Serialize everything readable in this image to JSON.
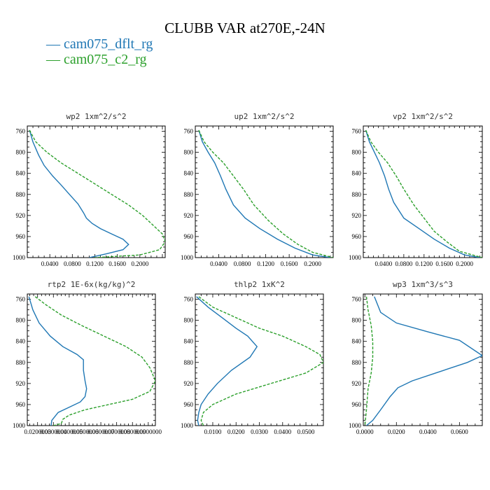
{
  "title": "CLUBB VAR at270E,-24N",
  "legend": [
    {
      "label": "cam075_dflt_rg",
      "color": "#1f77b4"
    },
    {
      "label": "cam075_c2_rg",
      "color": "#2ca02c"
    }
  ],
  "chart_data": [
    {
      "type": "line",
      "title": "wp2  1xm^2/s^2",
      "ylim": [
        1000,
        750
      ],
      "yticks": [
        "760",
        "800",
        "840",
        "880",
        "920",
        "960",
        "1000"
      ],
      "xlim": [
        0.0,
        0.245
      ],
      "xticks": [
        {
          "value": 0.04,
          "label": "0.0400"
        },
        {
          "value": 0.08,
          "label": "0.0800"
        },
        {
          "value": 0.12,
          "label": "0.1200"
        },
        {
          "value": 0.16,
          "label": "0.1600"
        },
        {
          "value": 0.2,
          "label": "0.2000"
        }
      ],
      "series": [
        {
          "name": "cam075_dflt_rg",
          "color": "#1f77b4",
          "dash": "",
          "x": [
            0.004,
            0.01,
            0.02,
            0.03,
            0.045,
            0.06,
            0.075,
            0.09,
            0.1,
            0.105,
            0.115,
            0.13,
            0.15,
            0.17,
            0.18,
            0.17,
            0.14,
            0.11
          ],
          "y": [
            758,
            780,
            805,
            825,
            845,
            862,
            880,
            898,
            915,
            925,
            935,
            945,
            955,
            965,
            975,
            985,
            993,
            1000
          ]
        },
        {
          "name": "cam075_c2_rg",
          "color": "#2ca02c",
          "dash": "4,2",
          "x": [
            0.004,
            0.015,
            0.035,
            0.06,
            0.09,
            0.12,
            0.15,
            0.18,
            0.205,
            0.225,
            0.24,
            0.245,
            0.235,
            0.2,
            0.12
          ],
          "y": [
            758,
            780,
            800,
            820,
            840,
            860,
            880,
            900,
            920,
            940,
            955,
            970,
            985,
            995,
            1000
          ]
        }
      ]
    },
    {
      "type": "line",
      "title": "up2  1xm^2/s^2",
      "ylim": [
        1000,
        750
      ],
      "yticks": [
        "760",
        "800",
        "840",
        "880",
        "920",
        "960",
        "1000"
      ],
      "xlim": [
        0.0,
        0.235
      ],
      "xticks": [
        {
          "value": 0.04,
          "label": "0.0400"
        },
        {
          "value": 0.08,
          "label": "0.0800"
        },
        {
          "value": 0.12,
          "label": "0.1200"
        },
        {
          "value": 0.16,
          "label": "0.1600"
        },
        {
          "value": 0.2,
          "label": "0.2000"
        }
      ],
      "series": [
        {
          "name": "cam075_dflt_rg",
          "color": "#1f77b4",
          "dash": "",
          "x": [
            0.006,
            0.012,
            0.022,
            0.033,
            0.043,
            0.052,
            0.065,
            0.085,
            0.11,
            0.14,
            0.17,
            0.2,
            0.23
          ],
          "y": [
            758,
            780,
            800,
            820,
            845,
            870,
            900,
            925,
            945,
            965,
            982,
            995,
            1000
          ]
        },
        {
          "name": "cam075_c2_rg",
          "color": "#2ca02c",
          "dash": "4,2",
          "x": [
            0.006,
            0.015,
            0.03,
            0.048,
            0.065,
            0.082,
            0.1,
            0.125,
            0.15,
            0.175,
            0.2,
            0.235
          ],
          "y": [
            758,
            780,
            800,
            820,
            845,
            870,
            900,
            930,
            955,
            975,
            990,
            1000
          ]
        }
      ]
    },
    {
      "type": "line",
      "title": "vp2  1xm^2/s^2",
      "ylim": [
        1000,
        750
      ],
      "yticks": [
        "760",
        "800",
        "840",
        "880",
        "920",
        "960",
        "1000"
      ],
      "xlim": [
        0.0,
        0.235
      ],
      "xticks": [
        {
          "value": 0.04,
          "label": "0.0400"
        },
        {
          "value": 0.08,
          "label": "0.0800"
        },
        {
          "value": 0.12,
          "label": "0.1200"
        },
        {
          "value": 0.16,
          "label": "0.1600"
        },
        {
          "value": 0.2,
          "label": "0.2000"
        }
      ],
      "series": [
        {
          "name": "cam075_dflt_rg",
          "color": "#1f77b4",
          "dash": "",
          "x": [
            0.005,
            0.012,
            0.022,
            0.032,
            0.042,
            0.05,
            0.06,
            0.08,
            0.11,
            0.14,
            0.17,
            0.2,
            0.23
          ],
          "y": [
            758,
            780,
            800,
            820,
            845,
            870,
            895,
            925,
            945,
            965,
            982,
            995,
            1000
          ]
        },
        {
          "name": "cam075_c2_rg",
          "color": "#2ca02c",
          "dash": "4,2",
          "x": [
            0.005,
            0.015,
            0.03,
            0.048,
            0.065,
            0.08,
            0.1,
            0.12,
            0.14,
            0.165,
            0.19,
            0.235
          ],
          "y": [
            758,
            780,
            800,
            820,
            845,
            870,
            900,
            925,
            950,
            970,
            988,
            1000
          ]
        }
      ]
    },
    {
      "type": "line",
      "title": "rtp2  1E-6x(kg/kg)^2",
      "ylim": [
        1000,
        750
      ],
      "yticks": [
        "760",
        "800",
        "840",
        "880",
        "920",
        "960",
        "1000"
      ],
      "xlim": [
        0.0135,
        0.0945
      ],
      "xticks": [
        {
          "value": 0.02,
          "label": "0.0200000"
        },
        {
          "value": 0.03,
          "label": "0.0300000"
        },
        {
          "value": 0.04,
          "label": "0.0400000"
        },
        {
          "value": 0.05,
          "label": "0.0500000"
        },
        {
          "value": 0.06,
          "label": "0.0600000"
        },
        {
          "value": 0.07,
          "label": "0.0700000"
        },
        {
          "value": 0.08,
          "label": "0.0800000"
        },
        {
          "value": 0.09,
          "label": "0.0900000"
        }
      ],
      "series": [
        {
          "name": "cam075_dflt_rg",
          "color": "#1f77b4",
          "dash": "",
          "x": [
            0.0145,
            0.017,
            0.021,
            0.028,
            0.036,
            0.045,
            0.049,
            0.049,
            0.05,
            0.051,
            0.05,
            0.047,
            0.04,
            0.033,
            0.029,
            0.0285
          ],
          "y": [
            755,
            780,
            805,
            830,
            850,
            865,
            875,
            895,
            915,
            930,
            945,
            955,
            965,
            975,
            990,
            1000
          ]
        },
        {
          "name": "cam075_c2_rg",
          "color": "#2ca02c",
          "dash": "4,2",
          "x": [
            0.0185,
            0.025,
            0.035,
            0.048,
            0.062,
            0.076,
            0.086,
            0.091,
            0.0945,
            0.091,
            0.08,
            0.065,
            0.05,
            0.04,
            0.036,
            0.035,
            0.03
          ],
          "y": [
            755,
            770,
            790,
            810,
            830,
            850,
            870,
            890,
            915,
            935,
            950,
            960,
            970,
            980,
            988,
            996,
            1000
          ]
        }
      ]
    },
    {
      "type": "line",
      "title": "thlp2  1xK^2",
      "ylim": [
        1000,
        750
      ],
      "yticks": [
        "760",
        "800",
        "840",
        "880",
        "920",
        "960",
        "1000"
      ],
      "xlim": [
        0.0025,
        0.0575
      ],
      "xticks": [
        {
          "value": 0.01,
          "label": "0.0100"
        },
        {
          "value": 0.02,
          "label": "0.0200"
        },
        {
          "value": 0.03,
          "label": "0.0300"
        },
        {
          "value": 0.04,
          "label": "0.0400"
        },
        {
          "value": 0.05,
          "label": "0.0500"
        }
      ],
      "series": [
        {
          "name": "cam075_dflt_rg",
          "color": "#1f77b4",
          "dash": "",
          "x": [
            0.003,
            0.008,
            0.014,
            0.02,
            0.025,
            0.029,
            0.026,
            0.018,
            0.012,
            0.008,
            0.005,
            0.004,
            0.0035,
            0.004
          ],
          "y": [
            755,
            775,
            795,
            815,
            830,
            850,
            870,
            895,
            920,
            940,
            960,
            975,
            990,
            1000
          ]
        },
        {
          "name": "cam075_c2_rg",
          "color": "#2ca02c",
          "dash": "4,2",
          "x": [
            0.004,
            0.01,
            0.02,
            0.03,
            0.04,
            0.05,
            0.056,
            0.0575,
            0.05,
            0.035,
            0.02,
            0.01,
            0.006,
            0.005,
            0.006
          ],
          "y": [
            755,
            775,
            795,
            815,
            830,
            850,
            865,
            880,
            900,
            920,
            940,
            960,
            975,
            990,
            1000
          ]
        }
      ]
    },
    {
      "type": "line",
      "title": "wp3  1xm^3/s^3",
      "ylim": [
        1000,
        750
      ],
      "yticks": [
        "760",
        "800",
        "840",
        "880",
        "920",
        "960",
        "1000"
      ],
      "xlim": [
        -0.001,
        0.0745
      ],
      "xticks": [
        {
          "value": 0.0,
          "label": "0.0000"
        },
        {
          "value": 0.02,
          "label": "0.0200"
        },
        {
          "value": 0.04,
          "label": "0.0400"
        },
        {
          "value": 0.06,
          "label": "0.0600"
        }
      ],
      "series": [
        {
          "name": "cam075_dflt_rg",
          "color": "#1f77b4",
          "dash": "",
          "x": [
            0.006,
            0.01,
            0.02,
            0.04,
            0.06,
            0.0745,
            0.065,
            0.045,
            0.03,
            0.021,
            0.016,
            0.01,
            0.005,
            0.001
          ],
          "y": [
            755,
            785,
            805,
            822,
            838,
            867,
            880,
            900,
            915,
            928,
            945,
            970,
            990,
            1000
          ]
        },
        {
          "name": "cam075_c2_rg",
          "color": "#2ca02c",
          "dash": "4,2",
          "x": [
            0.001,
            0.002,
            0.004,
            0.005,
            0.005,
            0.004,
            0.002,
            0.001,
            0.0
          ],
          "y": [
            755,
            780,
            810,
            840,
            870,
            900,
            930,
            970,
            1000
          ]
        }
      ]
    }
  ]
}
